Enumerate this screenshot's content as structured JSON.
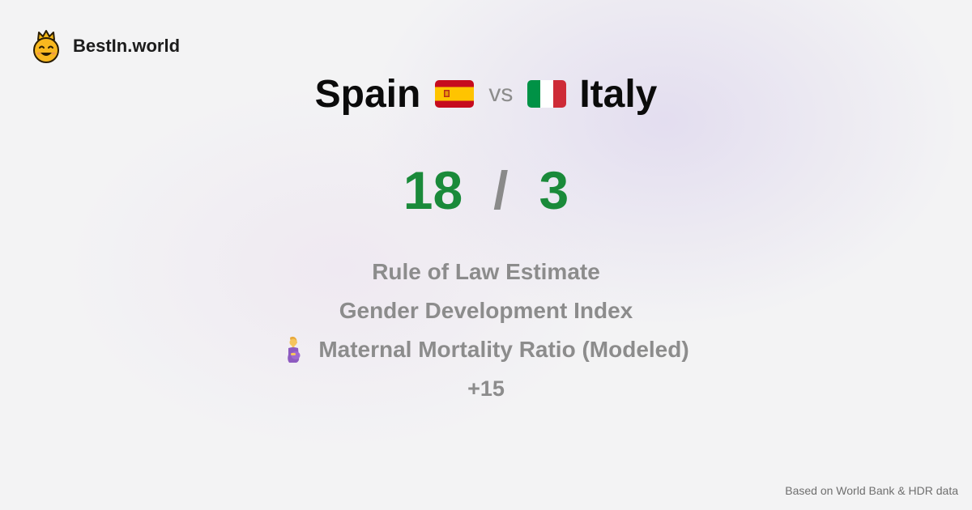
{
  "brand": {
    "name": "BestIn.world",
    "icon": "crowned-smiley-icon"
  },
  "comparison": {
    "left_country": "Spain",
    "left_flag": "spain-flag-icon",
    "vs_label": "vs",
    "right_country": "Italy",
    "right_flag": "italy-flag-icon"
  },
  "score": {
    "left": "18",
    "separator": "/",
    "right": "3"
  },
  "metrics": [
    {
      "label": "Rule of Law Estimate"
    },
    {
      "label": "Gender Development Index"
    },
    {
      "label": "Maternal Mortality Ratio (Modeled)",
      "icon": "pregnant-woman-icon"
    }
  ],
  "more_label": "+15",
  "footer": "Based on World Bank & HDR data",
  "colors": {
    "score": "#1a8a3a",
    "muted": "#8c8c8c",
    "text": "#0b0b0b"
  }
}
